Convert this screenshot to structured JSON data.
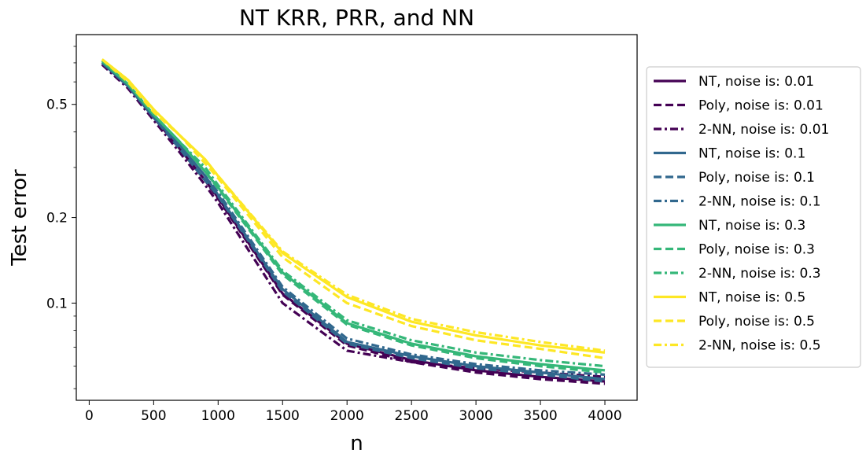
{
  "chart_data": {
    "type": "line",
    "title": "NT KRR, PRR, and NN",
    "xlabel": "n",
    "ylabel": "Test error",
    "xlim": [
      -100,
      4250
    ],
    "ylim": [
      0.0455,
      0.88
    ],
    "yscale": "log",
    "grid": false,
    "legend_position": "outside-right",
    "x_ticks": [
      0,
      500,
      1000,
      1500,
      2000,
      2500,
      3000,
      3500,
      4000
    ],
    "x_tick_labels": [
      "0",
      "500",
      "1000",
      "1500",
      "2000",
      "2500",
      "3000",
      "3500",
      "4000"
    ],
    "y_ticks": [
      0.1,
      0.2,
      0.5
    ],
    "y_tick_labels": [
      "0.1",
      "0.2",
      "0.5"
    ],
    "x": [
      100,
      300,
      500,
      700,
      900,
      1000,
      1500,
      2000,
      2500,
      3000,
      3500,
      4000
    ],
    "series": [
      {
        "name": "NT, noise is: 0.01",
        "color": "#440154",
        "dash": "solid",
        "values": [
          0.7,
          0.58,
          0.45,
          0.35,
          0.27,
          0.235,
          0.108,
          0.072,
          0.063,
          0.058,
          0.055,
          0.053
        ]
      },
      {
        "name": "Poly, noise is: 0.01",
        "color": "#440154",
        "dash": "dashed",
        "values": [
          0.7,
          0.58,
          0.45,
          0.35,
          0.27,
          0.233,
          0.107,
          0.071,
          0.062,
          0.057,
          0.054,
          0.052
        ]
      },
      {
        "name": "2-NN, noise is: 0.01",
        "color": "#440154",
        "dash": "dashdot",
        "values": [
          0.69,
          0.57,
          0.44,
          0.34,
          0.26,
          0.225,
          0.1,
          0.068,
          0.062,
          0.059,
          0.057,
          0.055
        ]
      },
      {
        "name": "NT, noise is: 0.1",
        "color": "#31688e",
        "dash": "solid",
        "values": [
          0.7,
          0.58,
          0.45,
          0.36,
          0.28,
          0.24,
          0.112,
          0.073,
          0.065,
          0.06,
          0.057,
          0.054
        ]
      },
      {
        "name": "Poly, noise is: 0.1",
        "color": "#31688e",
        "dash": "dashed",
        "values": [
          0.7,
          0.58,
          0.45,
          0.35,
          0.27,
          0.238,
          0.11,
          0.072,
          0.064,
          0.059,
          0.056,
          0.053
        ]
      },
      {
        "name": "2-NN, noise is: 0.1",
        "color": "#31688e",
        "dash": "dashdot",
        "values": [
          0.7,
          0.58,
          0.45,
          0.36,
          0.28,
          0.245,
          0.114,
          0.075,
          0.066,
          0.061,
          0.058,
          0.056
        ]
      },
      {
        "name": "NT, noise is: 0.3",
        "color": "#35b779",
        "dash": "solid",
        "values": [
          0.71,
          0.59,
          0.46,
          0.37,
          0.29,
          0.255,
          0.128,
          0.085,
          0.072,
          0.065,
          0.061,
          0.058
        ]
      },
      {
        "name": "Poly, noise is: 0.3",
        "color": "#35b779",
        "dash": "dashed",
        "values": [
          0.71,
          0.59,
          0.46,
          0.37,
          0.29,
          0.253,
          0.126,
          0.084,
          0.071,
          0.064,
          0.06,
          0.057
        ]
      },
      {
        "name": "2-NN, noise is: 0.3",
        "color": "#35b779",
        "dash": "dashdot",
        "values": [
          0.71,
          0.59,
          0.46,
          0.37,
          0.3,
          0.26,
          0.13,
          0.087,
          0.074,
          0.067,
          0.063,
          0.06
        ]
      },
      {
        "name": "NT, noise is: 0.5",
        "color": "#fde725",
        "dash": "solid",
        "values": [
          0.72,
          0.61,
          0.48,
          0.39,
          0.32,
          0.28,
          0.15,
          0.105,
          0.086,
          0.077,
          0.071,
          0.067
        ]
      },
      {
        "name": "Poly, noise is: 0.5",
        "color": "#fde725",
        "dash": "dashed",
        "values": [
          0.72,
          0.6,
          0.47,
          0.39,
          0.31,
          0.275,
          0.145,
          0.1,
          0.083,
          0.074,
          0.069,
          0.064
        ]
      },
      {
        "name": "2-NN, noise is: 0.5",
        "color": "#fde725",
        "dash": "dashdot",
        "values": [
          0.72,
          0.61,
          0.48,
          0.39,
          0.32,
          0.28,
          0.152,
          0.107,
          0.088,
          0.079,
          0.073,
          0.068
        ]
      }
    ]
  }
}
